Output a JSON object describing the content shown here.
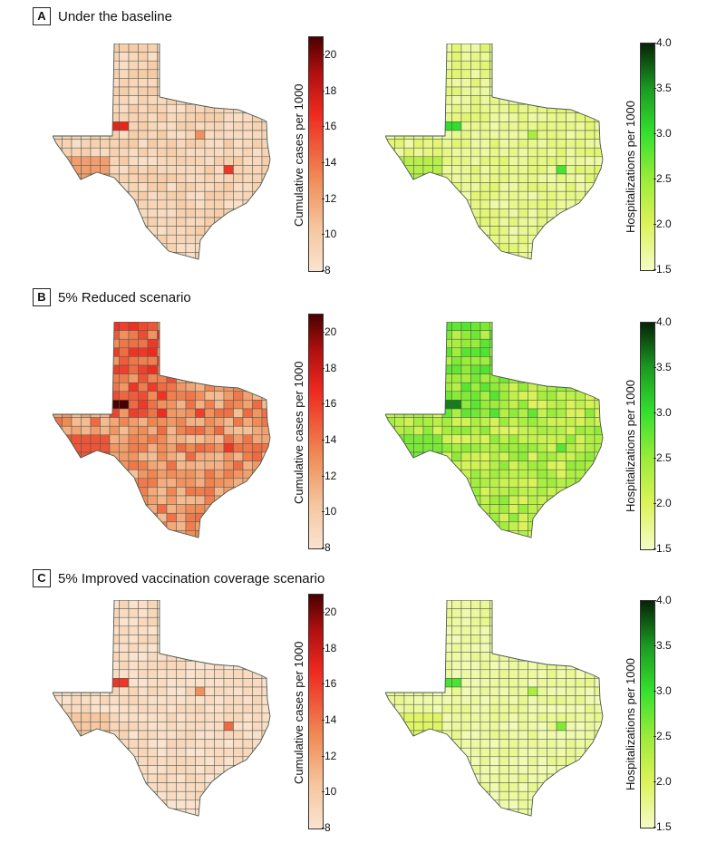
{
  "panels": [
    {
      "letter": "A",
      "title": "Under the baseline"
    },
    {
      "letter": "B",
      "title": "5% Reduced scenario"
    },
    {
      "letter": "C",
      "title": "5% Improved vaccination coverage scenario"
    }
  ],
  "colorbars": {
    "cases": {
      "title": "Cumulative cases per 1000",
      "ticks": [
        "8",
        "10",
        "12",
        "14",
        "16",
        "18",
        "20"
      ],
      "min": 8,
      "max": 21
    },
    "hosp": {
      "title": "Hospitalizations per 1000",
      "ticks": [
        "1.5",
        "2.0",
        "2.5",
        "3.0",
        "3.5",
        "4.0"
      ],
      "min": 1.5,
      "max": 4.0
    }
  },
  "colors": {
    "cases_low": "#fbe3d0",
    "cases_high": "#4a0000",
    "hosp_low": "#f5fbc6",
    "hosp_high": "#062406",
    "border": "#4a5a50"
  }
}
